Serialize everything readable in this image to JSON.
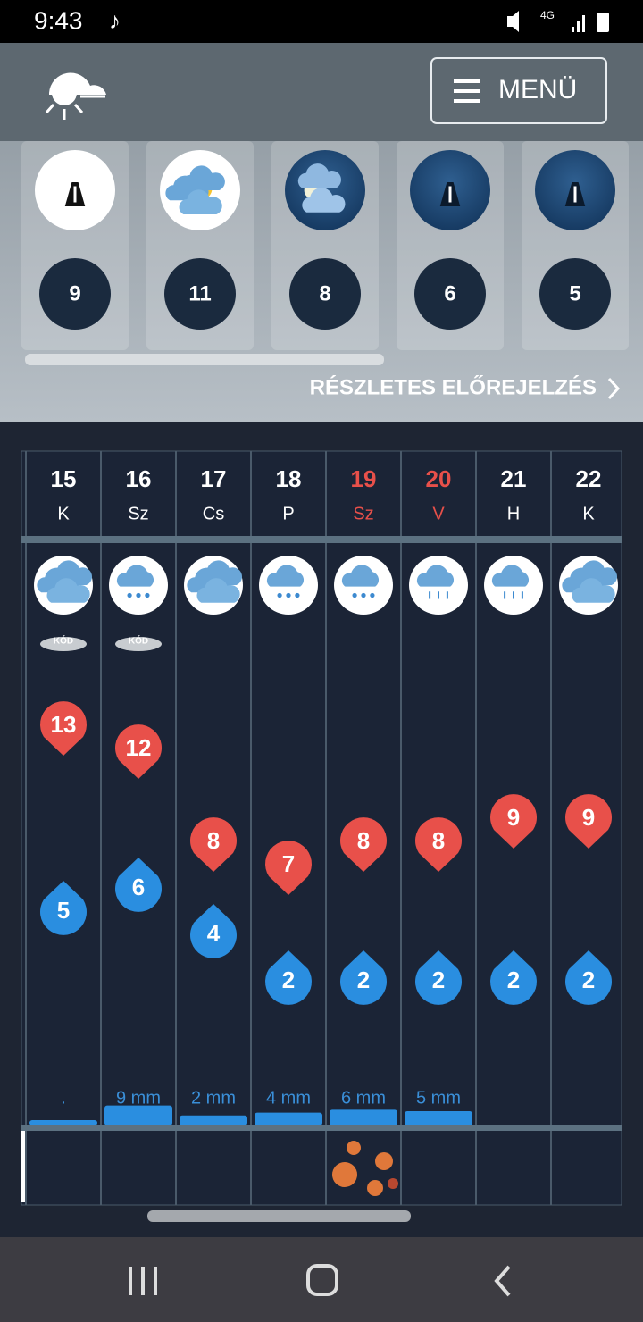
{
  "status_bar": {
    "time": "9:43",
    "network": "4G"
  },
  "header": {
    "menu": "MENÜ"
  },
  "hourly": {
    "items": [
      {
        "icon": "road-fog",
        "temp": 9
      },
      {
        "icon": "partly-cloudy",
        "temp": 11
      },
      {
        "icon": "night-cloudy",
        "temp": 8
      },
      {
        "icon": "road-night",
        "temp": 6
      },
      {
        "icon": "road-night",
        "temp": 5
      }
    ],
    "link": "RÉSZLETES ELŐREJELZÉS"
  },
  "daily": {
    "days": [
      {
        "date": "15",
        "weekday": "K",
        "weekend": false,
        "icon": "partly-cloudy",
        "badge": "KÓD",
        "max": 13,
        "min": 5,
        "precip": "."
      },
      {
        "date": "16",
        "weekday": "Sz",
        "weekend": false,
        "icon": "rain",
        "badge": "KÓD",
        "max": 12,
        "min": 6,
        "precip": "9 mm"
      },
      {
        "date": "17",
        "weekday": "Cs",
        "weekend": false,
        "icon": "partly-cloudy",
        "badge": null,
        "max": 8,
        "min": 4,
        "precip": "2 mm"
      },
      {
        "date": "18",
        "weekday": "P",
        "weekend": false,
        "icon": "rain",
        "badge": null,
        "max": 7,
        "min": 2,
        "precip": "4 mm"
      },
      {
        "date": "19",
        "weekday": "Sz",
        "weekend": true,
        "icon": "rain",
        "badge": null,
        "max": 8,
        "min": 2,
        "precip": "6 mm"
      },
      {
        "date": "20",
        "weekday": "V",
        "weekend": true,
        "icon": "drizzle",
        "badge": null,
        "max": 8,
        "min": 2,
        "precip": "5 mm"
      },
      {
        "date": "21",
        "weekday": "H",
        "weekend": false,
        "icon": "drizzle",
        "badge": null,
        "max": 9,
        "min": 2,
        "precip": null
      },
      {
        "date": "22",
        "weekday": "K",
        "weekend": false,
        "icon": "partly-cloudy",
        "badge": null,
        "max": 9,
        "min": 2,
        "precip": null
      }
    ]
  }
}
